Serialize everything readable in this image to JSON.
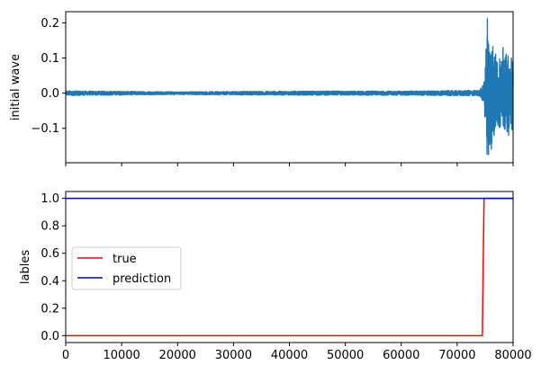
{
  "chart_data": [
    {
      "type": "line",
      "panel": "top",
      "ylabel": "initial wave",
      "xlabel": "",
      "xlim": [
        0,
        80000
      ],
      "ylim": [
        -0.198,
        0.232
      ],
      "yticks": [
        -0.1,
        0.0,
        0.1,
        0.2
      ],
      "ytick_labels": [
        "−0.1",
        "0.0",
        "0.1",
        "0.2"
      ],
      "xticks": [
        0,
        10000,
        20000,
        30000,
        40000,
        50000,
        60000,
        70000,
        80000
      ],
      "show_xtick_labels": false,
      "series": [
        {
          "name": "initial wave",
          "color": "#1f77b4",
          "envelope": [
            {
              "x": 0,
              "amp": 0.007
            },
            {
              "x": 5000,
              "amp": 0.006
            },
            {
              "x": 20000,
              "amp": 0.004
            },
            {
              "x": 30000,
              "amp": 0.005
            },
            {
              "x": 45000,
              "amp": 0.006
            },
            {
              "x": 60000,
              "amp": 0.006
            },
            {
              "x": 74000,
              "amp": 0.008
            },
            {
              "x": 74800,
              "amp": 0.03
            },
            {
              "x": 75200,
              "amp": 0.16
            },
            {
              "x": 75600,
              "amp": 0.2
            },
            {
              "x": 76200,
              "amp": 0.16
            },
            {
              "x": 77000,
              "amp": 0.11
            },
            {
              "x": 78000,
              "amp": 0.09
            },
            {
              "x": 79000,
              "amp": 0.12
            },
            {
              "x": 80000,
              "amp": 0.1
            }
          ],
          "peaks": [
            {
              "x": 75400,
              "y": 0.212
            },
            {
              "x": 75600,
              "y": -0.175
            },
            {
              "x": 78200,
              "y": 0.13
            },
            {
              "x": 79200,
              "y": -0.12
            },
            {
              "x": 79700,
              "y": 0.1
            }
          ]
        }
      ]
    },
    {
      "type": "line",
      "panel": "bottom",
      "ylabel": "lables",
      "xlabel": "",
      "xlim": [
        0,
        80000
      ],
      "ylim": [
        -0.05,
        1.05
      ],
      "yticks": [
        0.0,
        0.2,
        0.4,
        0.6,
        0.8,
        1.0
      ],
      "ytick_labels": [
        "0.0",
        "0.2",
        "0.4",
        "0.6",
        "0.8",
        "1.0"
      ],
      "xticks": [
        0,
        10000,
        20000,
        30000,
        40000,
        50000,
        60000,
        70000,
        80000
      ],
      "xtick_labels": [
        "0",
        "10000",
        "20000",
        "30000",
        "40000",
        "50000",
        "60000",
        "70000",
        "80000"
      ],
      "legend": {
        "placement": "center-left",
        "entries": [
          "true",
          "prediction"
        ]
      },
      "series": [
        {
          "name": "true",
          "color": "#ff0000",
          "x": [
            0,
            74500,
            74800,
            80000
          ],
          "y": [
            0,
            0,
            1,
            1
          ]
        },
        {
          "name": "prediction",
          "color": "#0000bf",
          "x": [
            0,
            80000
          ],
          "y": [
            1,
            1
          ]
        }
      ]
    }
  ]
}
